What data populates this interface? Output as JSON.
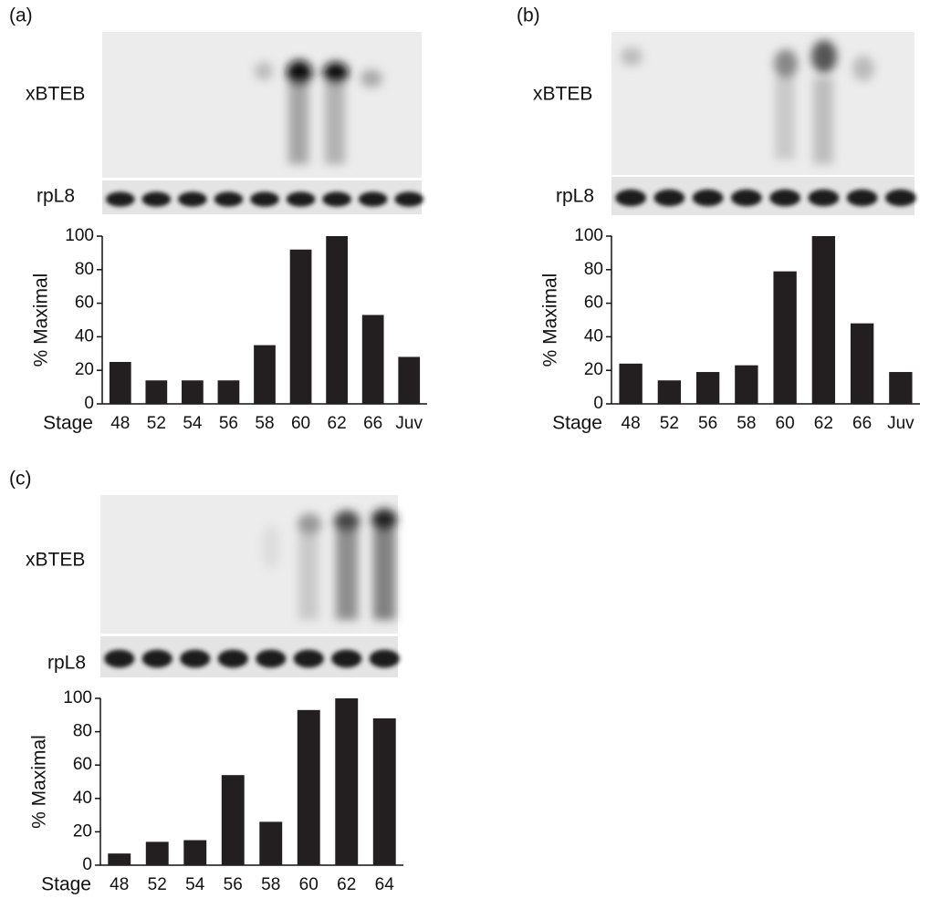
{
  "chart_data": [
    {
      "type": "bar",
      "panel": "(a)",
      "blot_labels": [
        "xBTEB",
        "rpL8"
      ],
      "ylabel": "% Maximal",
      "xlabel": "Stage",
      "categories": [
        "48",
        "52",
        "54",
        "56",
        "58",
        "60",
        "62",
        "66",
        "Juv"
      ],
      "values": [
        25,
        14,
        14,
        14,
        35,
        92,
        100,
        53,
        28
      ],
      "color": "#231f20",
      "ylim": [
        0,
        100
      ],
      "yticks": [
        0,
        20,
        40,
        60,
        80,
        100
      ]
    },
    {
      "type": "bar",
      "panel": "(b)",
      "blot_labels": [
        "xBTEB",
        "rpL8"
      ],
      "ylabel": "% Maximal",
      "xlabel": "Stage",
      "categories": [
        "48",
        "52",
        "56",
        "58",
        "60",
        "62",
        "66",
        "Juv"
      ],
      "values": [
        24,
        14,
        19,
        23,
        79,
        100,
        48,
        19
      ],
      "color": "#231f20",
      "ylim": [
        0,
        100
      ],
      "yticks": [
        0,
        20,
        40,
        60,
        80,
        100
      ]
    },
    {
      "type": "bar",
      "panel": "(c)",
      "blot_labels": [
        "xBTEB",
        "rpL8"
      ],
      "ylabel": "% Maximal",
      "xlabel": "Stage",
      "categories": [
        "48",
        "52",
        "54",
        "56",
        "58",
        "60",
        "62",
        "64"
      ],
      "values": [
        7,
        14,
        15,
        54,
        26,
        93,
        100,
        88
      ],
      "color": "#231f20",
      "ylim": [
        0,
        100
      ],
      "yticks": [
        0,
        20,
        40,
        60,
        80,
        100
      ]
    }
  ]
}
